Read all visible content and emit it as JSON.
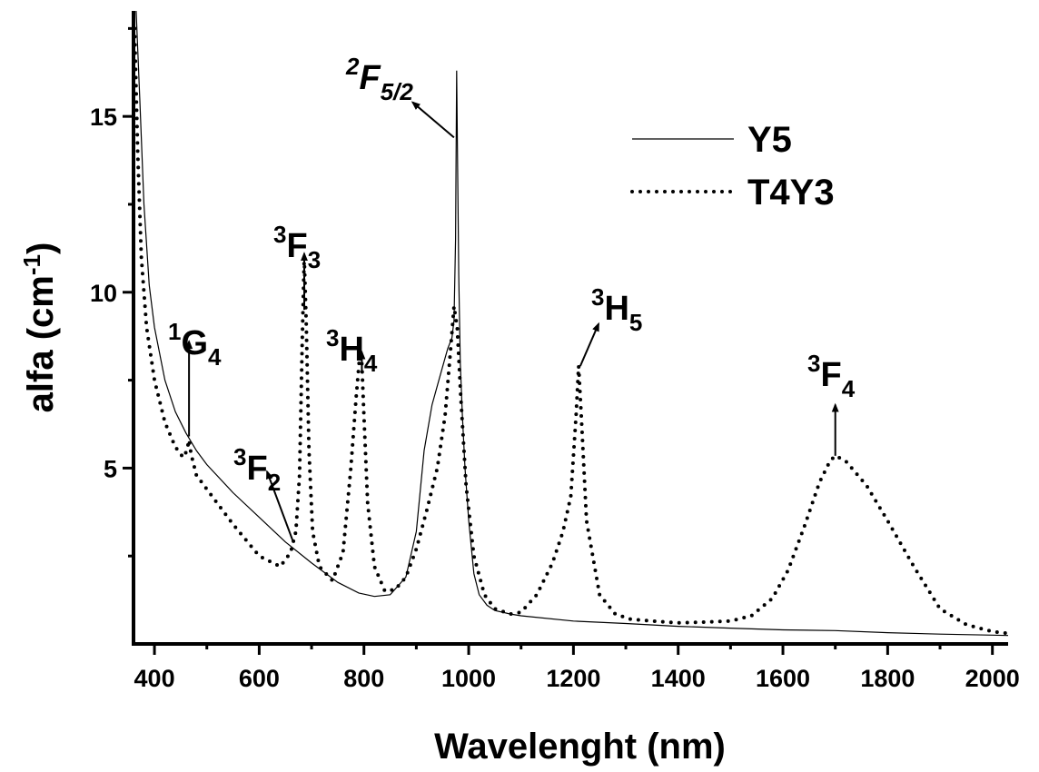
{
  "chart_data": {
    "type": "line",
    "title": "",
    "xlabel": "Wavelenght (nm)",
    "ylabel": {
      "base": "alfa (cm",
      "sup": "-1",
      "end": ")"
    },
    "xlim": [
      360,
      2030
    ],
    "ylim": [
      0,
      18
    ],
    "xticks": [
      400,
      600,
      800,
      1000,
      1200,
      1400,
      1600,
      1800,
      2000
    ],
    "yticks": [
      5,
      10,
      15
    ],
    "grid": false,
    "legend_position": "top-right",
    "series": [
      {
        "name": "Y5",
        "style": "solid",
        "x": [
          365,
          372,
          380,
          390,
          400,
          420,
          440,
          460,
          480,
          500,
          550,
          600,
          650,
          700,
          750,
          790,
          820,
          850,
          880,
          900,
          915,
          930,
          945,
          960,
          968,
          972,
          975,
          977,
          979,
          981,
          984,
          988,
          993,
          1000,
          1010,
          1020,
          1035,
          1050,
          1080,
          1100,
          1200,
          1300,
          1400,
          1500,
          1600,
          1700,
          1800,
          1900,
          2000,
          2030
        ],
        "y": [
          18,
          15.5,
          12.5,
          10.2,
          9.0,
          7.5,
          6.6,
          6.0,
          5.5,
          5.1,
          4.3,
          3.6,
          2.9,
          2.3,
          1.75,
          1.45,
          1.35,
          1.4,
          1.9,
          3.2,
          5.5,
          6.8,
          7.6,
          8.4,
          8.7,
          9.2,
          11.5,
          16.3,
          13.5,
          10.5,
          8.0,
          6.5,
          5.0,
          3.5,
          2.0,
          1.4,
          1.1,
          0.95,
          0.85,
          0.8,
          0.65,
          0.58,
          0.5,
          0.45,
          0.4,
          0.38,
          0.32,
          0.28,
          0.25,
          0.24
        ]
      },
      {
        "name": "T4Y3",
        "style": "dotted",
        "x": [
          362,
          368,
          375,
          385,
          400,
          420,
          440,
          455,
          462,
          466,
          470,
          480,
          500,
          550,
          600,
          640,
          660,
          670,
          677,
          682,
          686,
          690,
          695,
          702,
          715,
          740,
          760,
          775,
          785,
          792,
          796,
          800,
          807,
          820,
          840,
          860,
          880,
          900,
          920,
          940,
          955,
          965,
          972,
          978,
          985,
          995,
          1010,
          1030,
          1050,
          1080,
          1100,
          1130,
          1160,
          1180,
          1195,
          1205,
          1210,
          1215,
          1225,
          1250,
          1280,
          1310,
          1350,
          1400,
          1450,
          1500,
          1540,
          1580,
          1610,
          1640,
          1670,
          1690,
          1700,
          1720,
          1760,
          1800,
          1850,
          1900,
          1950,
          2000,
          2030
        ],
        "y": [
          17.5,
          14.0,
          11.0,
          9.0,
          7.5,
          6.3,
          5.6,
          5.3,
          5.5,
          5.8,
          5.4,
          4.8,
          4.4,
          3.4,
          2.5,
          2.2,
          2.6,
          3.2,
          4.8,
          8.5,
          11.0,
          9.0,
          5.5,
          3.2,
          2.2,
          1.8,
          2.6,
          5.0,
          7.0,
          8.2,
          8.0,
          6.5,
          4.0,
          2.2,
          1.5,
          1.55,
          1.9,
          2.7,
          3.8,
          5.0,
          6.5,
          8.3,
          9.6,
          9.0,
          7.0,
          4.5,
          2.5,
          1.4,
          1.0,
          0.85,
          0.9,
          1.4,
          2.3,
          3.2,
          4.2,
          6.5,
          7.9,
          6.5,
          3.5,
          1.4,
          0.85,
          0.7,
          0.65,
          0.6,
          0.62,
          0.65,
          0.8,
          1.3,
          2.1,
          3.3,
          4.6,
          5.2,
          5.35,
          5.2,
          4.5,
          3.5,
          2.2,
          1.0,
          0.55,
          0.35,
          0.3
        ]
      }
    ],
    "legend": [
      {
        "label": "Y5",
        "style": "solid"
      },
      {
        "label": "T4Y3",
        "style": "dotted"
      }
    ],
    "annotations": [
      {
        "id": "1G4",
        "sup": "1",
        "main": "G",
        "sub": "4",
        "italic": false,
        "arrow": {
          "from": [
            466,
            5.9
          ],
          "to": [
            466,
            8.6
          ]
        }
      },
      {
        "id": "3F2",
        "sup": "3",
        "main": "F",
        "sub": "2",
        "italic": false,
        "arrow": {
          "from": [
            665,
            2.9
          ],
          "to": [
            615,
            4.9
          ]
        }
      },
      {
        "id": "3F3",
        "sup": "3",
        "main": "F",
        "sub": "3",
        "italic": false,
        "arrow": {
          "from": [
            686,
            9.5
          ],
          "to": [
            686,
            11.1
          ]
        }
      },
      {
        "id": "3H4",
        "sup": "3",
        "main": "H",
        "sub": "4",
        "italic": false,
        "arrow": {
          "from": [
            796,
            7.7
          ],
          "to": [
            796,
            8.3
          ]
        }
      },
      {
        "id": "2F5/2",
        "sup": "2",
        "main": "F",
        "sub": "5/2",
        "italic": true,
        "arrow": {
          "from": [
            972,
            14.4
          ],
          "to": [
            893,
            15.4
          ]
        }
      },
      {
        "id": "3H5",
        "sup": "3",
        "main": "H",
        "sub": "5",
        "italic": false,
        "arrow": {
          "from": [
            1213,
            7.9
          ],
          "to": [
            1248,
            9.1
          ]
        }
      },
      {
        "id": "3F4",
        "sup": "3",
        "main": "F",
        "sub": "4",
        "italic": false,
        "arrow": {
          "from": [
            1700,
            5.35
          ],
          "to": [
            1700,
            6.8
          ]
        }
      }
    ]
  }
}
